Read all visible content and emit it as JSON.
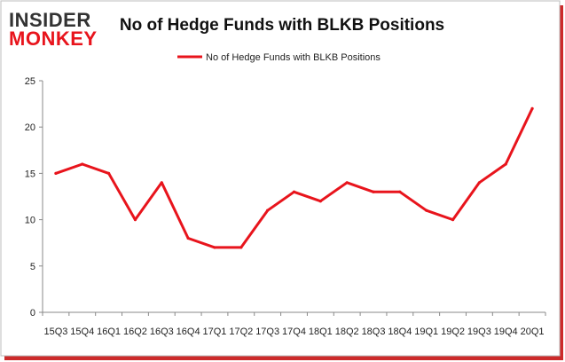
{
  "logo": {
    "line1": "INSIDER",
    "line2": "MONKEY"
  },
  "colors": {
    "series": "#e8141c",
    "logo_dark": "#333333",
    "logo_accent": "#e8141c",
    "frame_shadow": "#cc2a2a"
  },
  "chart_data": {
    "type": "line",
    "title": "No of Hedge Funds with BLKB Positions",
    "xlabel": "",
    "ylabel": "",
    "categories": [
      "15Q3",
      "15Q4",
      "16Q1",
      "16Q2",
      "16Q3",
      "16Q4",
      "17Q1",
      "17Q2",
      "17Q3",
      "17Q4",
      "18Q1",
      "18Q2",
      "18Q3",
      "18Q4",
      "19Q1",
      "19Q2",
      "19Q3",
      "19Q4",
      "20Q1"
    ],
    "series": [
      {
        "name": "No of Hedge Funds with BLKB Positions",
        "values": [
          15,
          16,
          15,
          10,
          14,
          8,
          7,
          7,
          11,
          13,
          12,
          14,
          13,
          13,
          11,
          10,
          14,
          16,
          22
        ]
      }
    ],
    "ylim": [
      0,
      25
    ],
    "yticks": [
      0,
      5,
      10,
      15,
      20,
      25
    ],
    "grid": false,
    "legend": "top-center"
  }
}
